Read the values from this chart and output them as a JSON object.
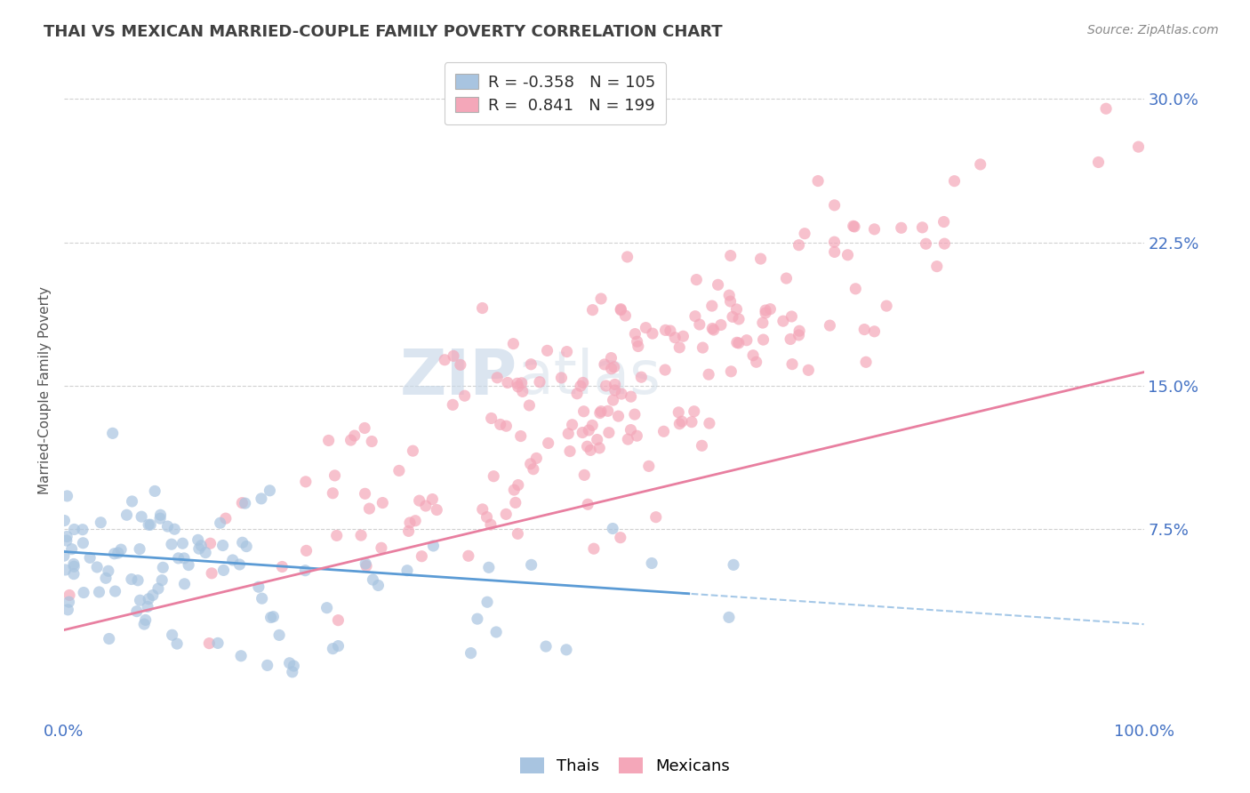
{
  "title": "THAI VS MEXICAN MARRIED-COUPLE FAMILY POVERTY CORRELATION CHART",
  "source": "Source: ZipAtlas.com",
  "ylabel": "Married-Couple Family Poverty",
  "xlim": [
    0.0,
    1.0
  ],
  "ylim": [
    -0.025,
    0.32
  ],
  "yticks": [
    0.075,
    0.15,
    0.225,
    0.3
  ],
  "ytick_labels": [
    "7.5%",
    "15.0%",
    "22.5%",
    "30.0%"
  ],
  "xtick_labels": [
    "0.0%",
    "100.0%"
  ],
  "watermark_zip": "ZIP",
  "watermark_atlas": "atlas",
  "legend_r_thai": "-0.358",
  "legend_n_thai": "105",
  "legend_r_mex": "0.841",
  "legend_n_mex": "199",
  "thai_color": "#a8c4e0",
  "mexican_color": "#f4a7b9",
  "thai_line_color": "#5b9bd5",
  "mexican_line_color": "#e87fa0",
  "thai_r": -0.358,
  "thai_n": 105,
  "mexican_r": 0.841,
  "mexican_n": 199,
  "background_color": "#ffffff",
  "grid_color": "#cccccc",
  "title_color": "#404040",
  "axis_label_color": "#555555",
  "tick_label_color": "#4472c4",
  "source_color": "#888888"
}
